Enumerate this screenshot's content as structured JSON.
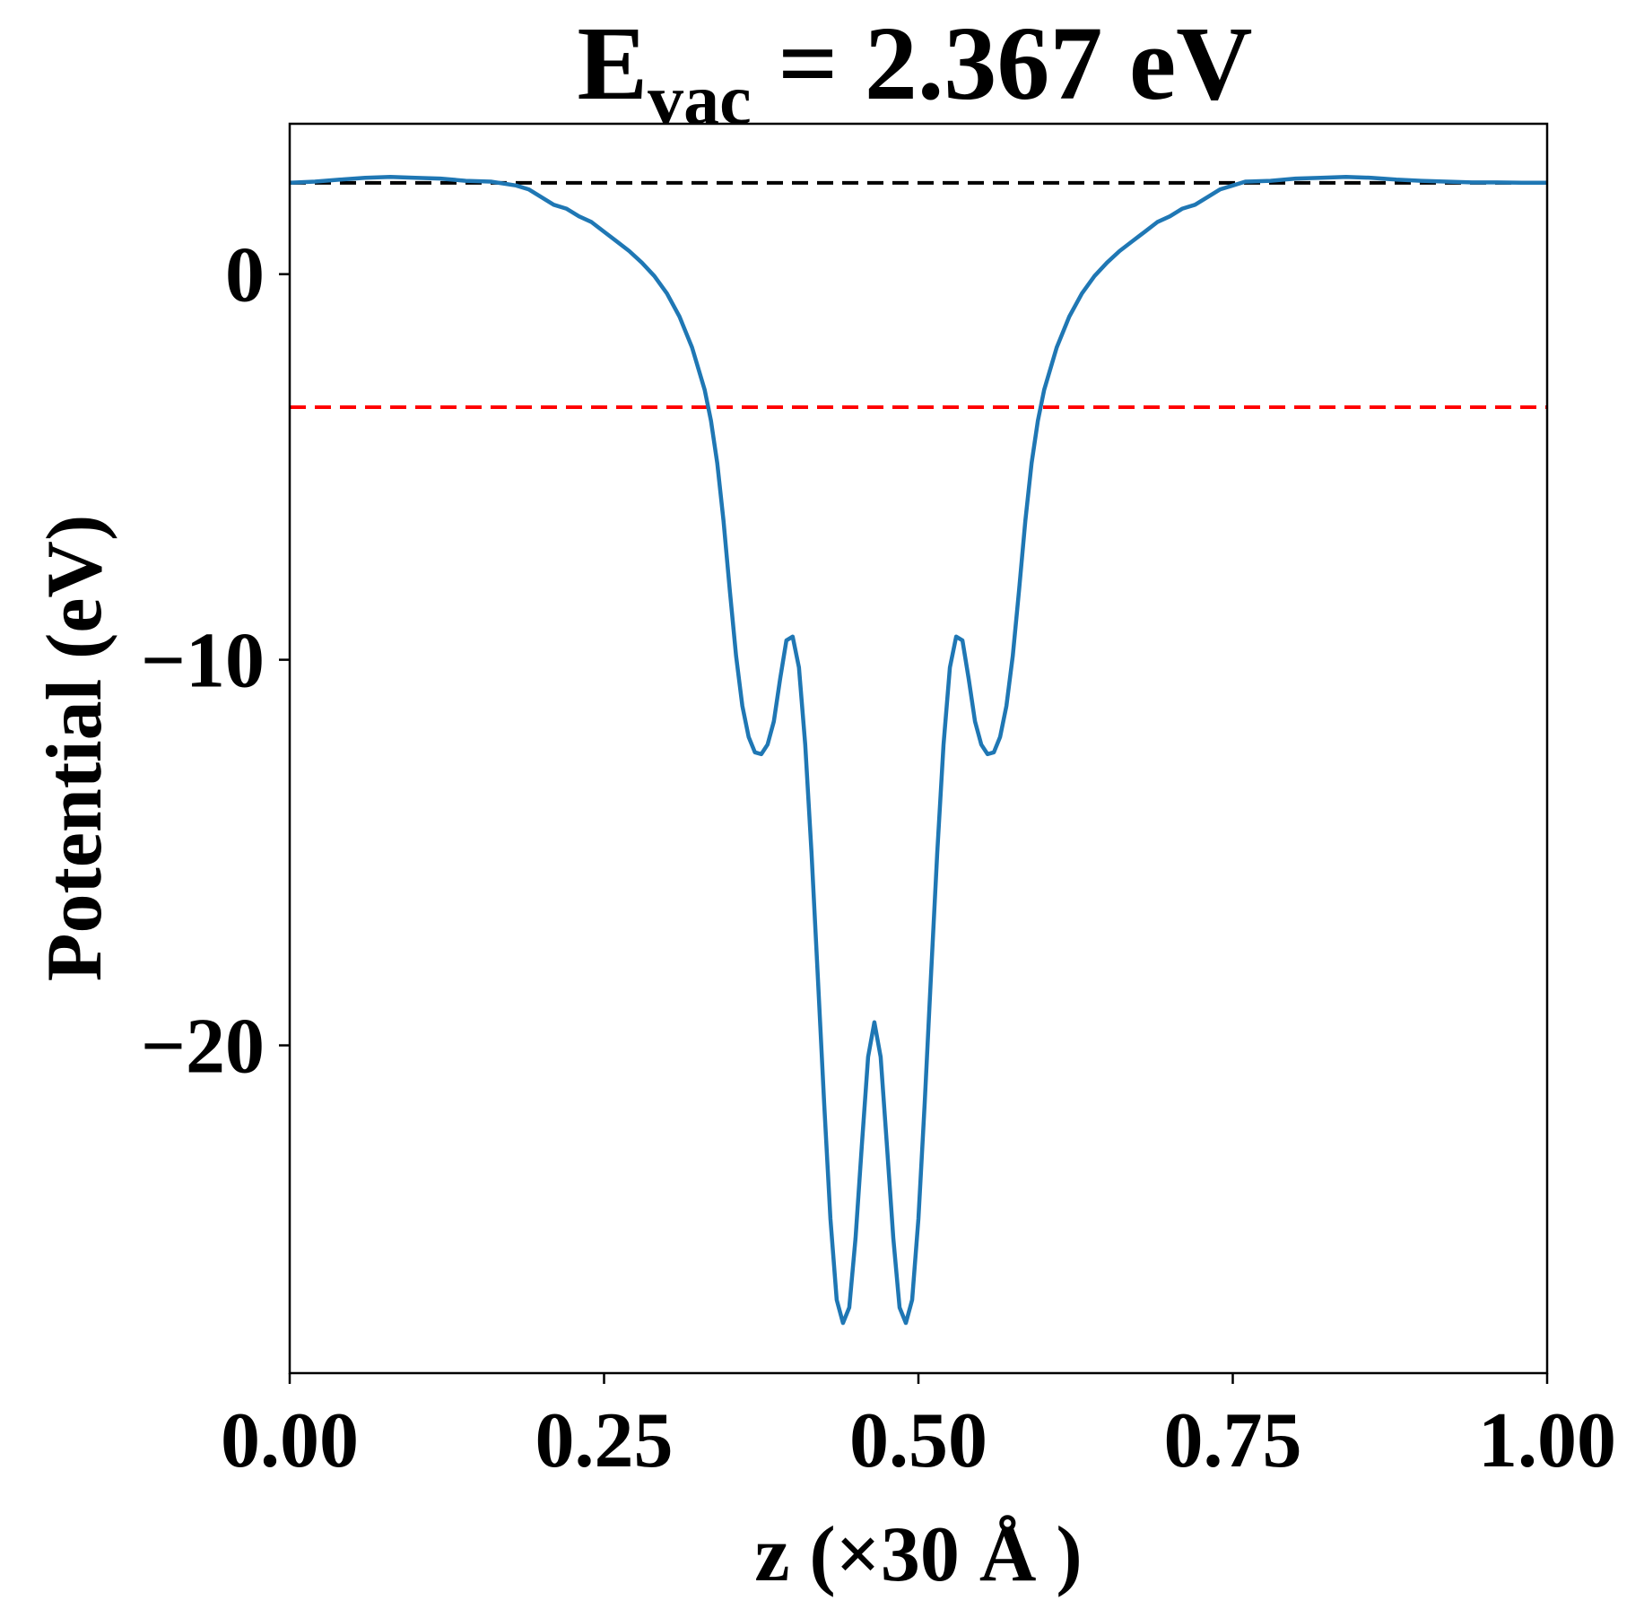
{
  "chart_data": {
    "type": "line",
    "title": {
      "main": "E",
      "subscript": "vac",
      "rest": " = 2.367 eV"
    },
    "xlabel": "z (×30 Å )",
    "ylabel": "Potential (eV)",
    "xlim": [
      0.0,
      1.0
    ],
    "ylim": [
      -28.5,
      3.9
    ],
    "xticks": [
      {
        "value": 0.0,
        "label": "0.00"
      },
      {
        "value": 0.25,
        "label": "0.25"
      },
      {
        "value": 0.5,
        "label": "0.50"
      },
      {
        "value": 0.75,
        "label": "0.75"
      },
      {
        "value": 1.0,
        "label": "1.00"
      }
    ],
    "yticks": [
      {
        "value": 0,
        "label": "0"
      },
      {
        "value": -10,
        "label": "−10"
      },
      {
        "value": -20,
        "label": "−20"
      }
    ],
    "grid": false,
    "legend": "none",
    "reference_lines": [
      {
        "orientation": "horizontal",
        "y": 2.367,
        "style": "dashed",
        "color": "#000000"
      },
      {
        "orientation": "horizontal",
        "y": -3.45,
        "style": "dashed",
        "color": "#ff0000"
      }
    ],
    "series": [
      {
        "color": "#1f77b4",
        "x": [
          0.0,
          0.02,
          0.04,
          0.06,
          0.08,
          0.1,
          0.12,
          0.14,
          0.16,
          0.18,
          0.19,
          0.2,
          0.21,
          0.22,
          0.23,
          0.24,
          0.25,
          0.26,
          0.27,
          0.28,
          0.29,
          0.3,
          0.31,
          0.32,
          0.33,
          0.335,
          0.34,
          0.345,
          0.35,
          0.355,
          0.36,
          0.365,
          0.37,
          0.375,
          0.38,
          0.385,
          0.39,
          0.395,
          0.4,
          0.405,
          0.41,
          0.415,
          0.42,
          0.425,
          0.43,
          0.435,
          0.44,
          0.445,
          0.45,
          0.455,
          0.46,
          0.465,
          0.47,
          0.475,
          0.48,
          0.485,
          0.49,
          0.495,
          0.5,
          0.505,
          0.51,
          0.515,
          0.52,
          0.525,
          0.53,
          0.535,
          0.54,
          0.545,
          0.55,
          0.555,
          0.56,
          0.565,
          0.57,
          0.575,
          0.58,
          0.585,
          0.59,
          0.595,
          0.6,
          0.61,
          0.62,
          0.63,
          0.64,
          0.65,
          0.66,
          0.67,
          0.68,
          0.69,
          0.7,
          0.71,
          0.72,
          0.73,
          0.74,
          0.75,
          0.76,
          0.78,
          0.8,
          0.82,
          0.84,
          0.86,
          0.88,
          0.9,
          0.92,
          0.94,
          0.96,
          0.98,
          1.0
        ],
        "y": [
          2.37,
          2.4,
          2.45,
          2.5,
          2.52,
          2.5,
          2.48,
          2.42,
          2.4,
          2.3,
          2.2,
          2.0,
          1.8,
          1.7,
          1.5,
          1.35,
          1.1,
          0.85,
          0.6,
          0.3,
          -0.05,
          -0.5,
          -1.1,
          -1.9,
          -3.0,
          -3.8,
          -4.9,
          -6.4,
          -8.2,
          -9.9,
          -11.2,
          -12.0,
          -12.4,
          -12.45,
          -12.2,
          -11.6,
          -10.5,
          -9.5,
          -9.4,
          -10.2,
          -12.2,
          -15.0,
          -18.2,
          -21.5,
          -24.5,
          -26.6,
          -27.2,
          -26.8,
          -25.0,
          -22.6,
          -20.3,
          -19.4,
          -20.3,
          -22.6,
          -25.0,
          -26.8,
          -27.2,
          -26.6,
          -24.5,
          -21.5,
          -18.2,
          -15.0,
          -12.2,
          -10.2,
          -9.4,
          -9.5,
          -10.5,
          -11.6,
          -12.2,
          -12.45,
          -12.4,
          -12.0,
          -11.2,
          -9.9,
          -8.2,
          -6.4,
          -4.9,
          -3.8,
          -3.0,
          -1.9,
          -1.1,
          -0.5,
          -0.05,
          0.3,
          0.6,
          0.85,
          1.1,
          1.35,
          1.5,
          1.7,
          1.8,
          2.0,
          2.2,
          2.3,
          2.4,
          2.42,
          2.48,
          2.5,
          2.52,
          2.5,
          2.45,
          2.42,
          2.4,
          2.38,
          2.38,
          2.37,
          2.37
        ]
      }
    ]
  }
}
